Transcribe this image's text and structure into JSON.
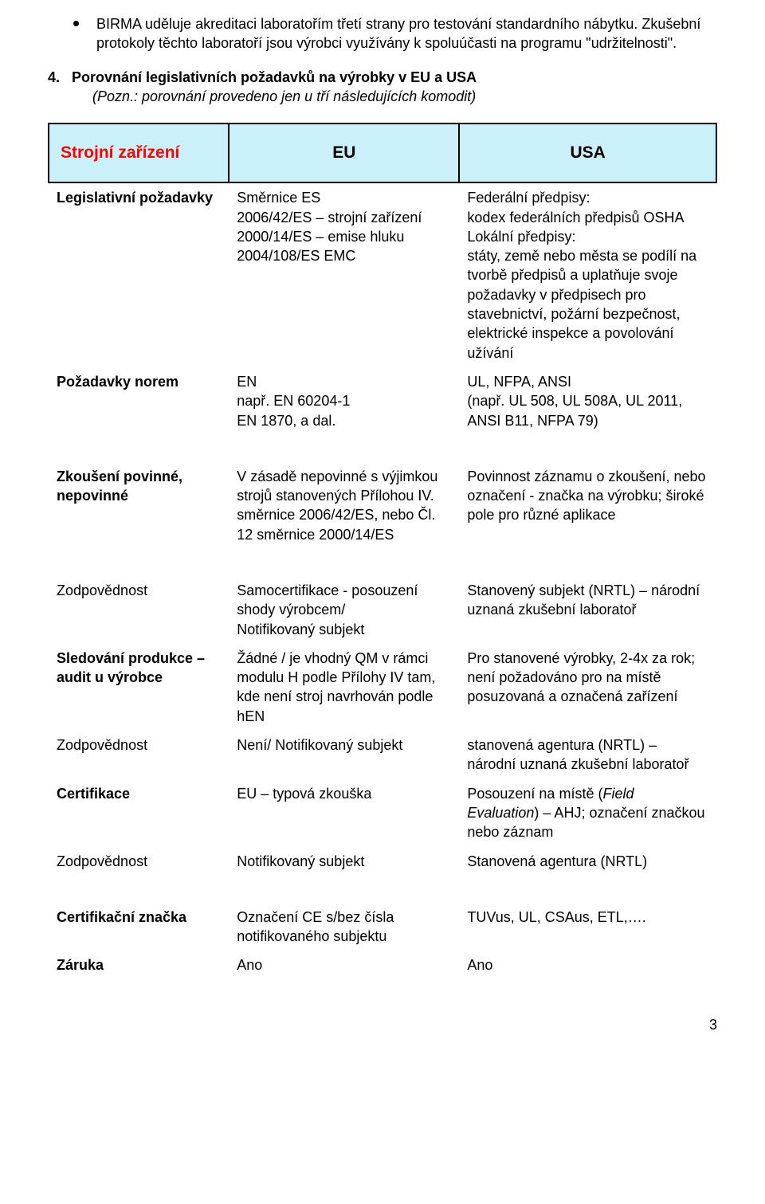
{
  "colors": {
    "header_bg": "#caf0fa",
    "header_border": "#000000",
    "title_text": "#ff0000",
    "body_text": "#000000",
    "page_bg": "#ffffff"
  },
  "typography": {
    "body_font": "Arial",
    "body_size_pt": 13.5,
    "header_size_pt": 16,
    "line_height": 1.35
  },
  "bullet": {
    "text": "BIRMA uděluje akreditaci laboratořím třetí strany pro testování standardního nábytku. Zkušební protokoly těchto laboratoří jsou výrobci využívány k spoluúčasti na programu \"udržitelnosti\"."
  },
  "section": {
    "number": "4.",
    "title": "Porovnání legislativních požadavků na výrobky v  EU  a  USA",
    "note": "(Pozn.: porovnání provedeno jen u tří následujících komodit)"
  },
  "table": {
    "header": {
      "title": "Strojní zařízení",
      "col_eu": "EU",
      "col_usa": "USA"
    },
    "rows": [
      {
        "label": "Legislativní požadavky",
        "indent": false,
        "eu": "Směrnice ES\n2006/42/ES – strojní zařízení\n2000/14/ES – emise hluku\n2004/108/ES   EMC",
        "usa": "Federální předpisy:\nkodex federálních předpisů OSHA\nLokální předpisy:\nstáty, země nebo města se podílí na tvorbě předpisů a uplatňuje svoje požadavky v předpisech pro stavebnictví, požární bezpečnost, elektrické inspekce a povolování užívání"
      },
      {
        "label": "Požadavky norem",
        "indent": false,
        "eu": "EN\nnapř. EN 60204-1\n         EN 1870, a dal.",
        "usa": "UL, NFPA, ANSI\n(např. UL 508, UL 508A, UL 2011, ANSI B11, NFPA 79)"
      },
      {
        "label": "Zkoušení povinné, nepovinné",
        "indent": false,
        "spacer_before": true,
        "eu": "V zásadě nepovinné s výjimkou strojů stanovených Přílohou IV. směrnice 2006/42/ES, nebo Čl. 12 směrnice 2000/14/ES",
        "usa": "Povinnost záznamu o zkoušení, nebo označení - značka na výrobku; široké pole pro různé aplikace"
      },
      {
        "label": "Zodpovědnost",
        "indent": true,
        "spacer_before": true,
        "eu": "Samocertifikace - posouzení shody výrobcem/\nNotifikovaný subjekt",
        "usa": "Stanovený subjekt (NRTL) – národní uznaná zkušební laboratoř"
      },
      {
        "label": "Sledování produkce – audit u výrobce",
        "indent": false,
        "eu": "Žádné / je vhodný QM v rámci modulu H podle Přílohy IV tam, kde není stroj navrhován podle hEN",
        "usa": "Pro stanovené výrobky, 2-4x za rok; není požadováno pro na místě posuzovaná a označená zařízení"
      },
      {
        "label": "Zodpovědnost",
        "indent": true,
        "eu": "Není/ Notifikovaný subjekt",
        "usa": "stanovená agentura (NRTL) – národní uznaná zkušební laboratoř"
      },
      {
        "label": "Certifikace",
        "indent": false,
        "eu": "EU – typová zkouška",
        "usa_html": "Posouzení na místě (<span class=\"italic\">Field Evaluation</span>) – AHJ; označení značkou nebo záznam"
      },
      {
        "label": "Zodpovědnost",
        "indent": true,
        "eu": "Notifikovaný subjekt",
        "usa": "Stanovená agentura (NRTL)"
      },
      {
        "label": "Certifikační značka",
        "indent": false,
        "spacer_before": true,
        "eu": "Označení CE s/bez čísla notifikovaného subjektu",
        "usa": "TUVus, UL, CSAus, ETL,…."
      },
      {
        "label": "Záruka",
        "indent": false,
        "eu": "Ano",
        "usa": "Ano"
      }
    ]
  },
  "page_number": "3"
}
